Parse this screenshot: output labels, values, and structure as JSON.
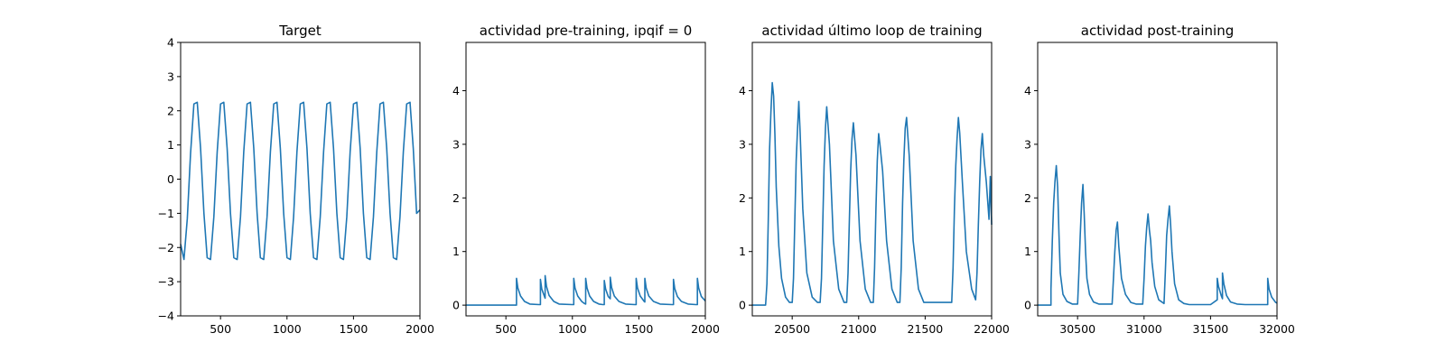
{
  "colors": {
    "series": "#1f77b4",
    "axes": "#000000",
    "background": "#ffffff"
  },
  "chart_data": [
    {
      "type": "line",
      "title": "Target",
      "xlabel": "",
      "ylabel": "",
      "xlim": [
        200,
        2000
      ],
      "ylim": [
        -4,
        4
      ],
      "xticks": [
        500,
        1000,
        1500,
        2000
      ],
      "yticks": [
        -4,
        -3,
        -2,
        -1,
        0,
        1,
        2,
        3,
        4
      ],
      "grid": false,
      "series": [
        {
          "x": [
            200,
            225,
            250,
            275,
            300,
            325,
            350,
            375,
            400,
            425,
            450,
            475,
            500,
            525,
            550,
            575,
            600,
            625,
            650,
            675,
            700,
            725,
            750,
            775,
            800,
            825,
            850,
            875,
            900,
            925,
            950,
            975,
            1000,
            1025,
            1050,
            1075,
            1100,
            1125,
            1150,
            1175,
            1200,
            1225,
            1250,
            1275,
            1300,
            1325,
            1350,
            1375,
            1400,
            1425,
            1450,
            1475,
            1500,
            1525,
            1550,
            1575,
            1600,
            1625,
            1650,
            1675,
            1700,
            1725,
            1750,
            1775,
            1800,
            1825,
            1850,
            1875,
            1900,
            1925,
            1950,
            1975,
            2000
          ],
          "y": [
            -1.9,
            -2.35,
            -1.15,
            0.75,
            2.2,
            2.25,
            0.9,
            -1.0,
            -2.3,
            -2.35,
            -1.1,
            0.8,
            2.2,
            2.25,
            0.9,
            -1.0,
            -2.3,
            -2.35,
            -1.1,
            0.8,
            2.2,
            2.25,
            0.9,
            -1.0,
            -2.3,
            -2.35,
            -1.1,
            0.8,
            2.2,
            2.25,
            0.9,
            -1.0,
            -2.3,
            -2.35,
            -1.1,
            0.8,
            2.2,
            2.25,
            0.9,
            -1.0,
            -2.3,
            -2.35,
            -1.1,
            0.8,
            2.2,
            2.25,
            0.9,
            -1.0,
            -2.3,
            -2.35,
            -1.1,
            0.8,
            2.2,
            2.25,
            0.9,
            -1.0,
            -2.3,
            -2.35,
            -1.1,
            0.8,
            2.2,
            2.25,
            0.9,
            -1.0,
            -2.3,
            -2.35,
            -1.1,
            0.8,
            2.2,
            2.25,
            0.9,
            -1.0,
            -0.9
          ]
        }
      ]
    },
    {
      "type": "line",
      "title": "actividad pre-training, ipqif = 0",
      "xlabel": "",
      "ylabel": "",
      "xlim": [
        200,
        2000
      ],
      "ylim": [
        -0.2,
        4.9
      ],
      "xticks": [
        500,
        1000,
        1500,
        2000
      ],
      "yticks": [
        0,
        1,
        2,
        3,
        4
      ],
      "grid": false,
      "series": [
        {
          "x": [
            200,
            580,
            580,
            590,
            610,
            640,
            680,
            750,
            760,
            760,
            770,
            790,
            795,
            795,
            805,
            825,
            860,
            900,
            1000,
            1010,
            1010,
            1020,
            1040,
            1070,
            1090,
            1100,
            1100,
            1110,
            1130,
            1160,
            1200,
            1230,
            1240,
            1240,
            1250,
            1270,
            1285,
            1285,
            1295,
            1315,
            1350,
            1400,
            1470,
            1480,
            1480,
            1490,
            1510,
            1540,
            1545,
            1545,
            1555,
            1575,
            1610,
            1660,
            1750,
            1760,
            1760,
            1770,
            1790,
            1820,
            1870,
            1930,
            1940,
            1940,
            1950,
            1970,
            2000
          ],
          "y": [
            0,
            0,
            0.5,
            0.32,
            0.17,
            0.07,
            0.02,
            0.01,
            0.01,
            0.48,
            0.3,
            0.16,
            0.13,
            0.55,
            0.35,
            0.18,
            0.07,
            0.02,
            0.01,
            0.01,
            0.5,
            0.32,
            0.17,
            0.07,
            0.03,
            0.02,
            0.5,
            0.32,
            0.17,
            0.07,
            0.02,
            0.01,
            0.01,
            0.46,
            0.3,
            0.16,
            0.12,
            0.52,
            0.33,
            0.17,
            0.07,
            0.02,
            0.01,
            0.01,
            0.5,
            0.32,
            0.17,
            0.07,
            0.06,
            0.5,
            0.32,
            0.17,
            0.07,
            0.02,
            0.01,
            0.01,
            0.48,
            0.31,
            0.16,
            0.07,
            0.02,
            0.01,
            0.01,
            0.5,
            0.32,
            0.16,
            0.08
          ]
        }
      ]
    },
    {
      "type": "line",
      "title": "actividad último loop de training",
      "xlabel": "",
      "ylabel": "",
      "xlim": [
        20200,
        22000
      ],
      "ylim": [
        -0.2,
        4.9
      ],
      "xticks": [
        20500,
        21000,
        21500,
        22000
      ],
      "yticks": [
        0,
        1,
        2,
        3,
        4
      ],
      "grid": false,
      "series": [
        {
          "x": [
            20200,
            20300,
            20310,
            20320,
            20330,
            20340,
            20350,
            20360,
            20370,
            20380,
            20400,
            20420,
            20450,
            20480,
            20500,
            20510,
            20520,
            20530,
            20540,
            20550,
            20560,
            20580,
            20610,
            20650,
            20690,
            20710,
            20720,
            20730,
            20740,
            20750,
            20760,
            20780,
            20810,
            20850,
            20890,
            20910,
            20920,
            20930,
            20940,
            20950,
            20960,
            20980,
            21010,
            21050,
            21090,
            21110,
            21120,
            21130,
            21140,
            21150,
            21160,
            21180,
            21210,
            21250,
            21290,
            21310,
            21320,
            21330,
            21340,
            21350,
            21360,
            21380,
            21410,
            21450,
            21490,
            21700,
            21710,
            21720,
            21730,
            21740,
            21750,
            21760,
            21780,
            21810,
            21850,
            21880,
            21890,
            21900,
            21910,
            21920,
            21930,
            21940,
            21960,
            21980,
            21990,
            22000
          ],
          "y": [
            0,
            0,
            0.4,
            1.6,
            2.9,
            3.6,
            4.15,
            3.9,
            3.2,
            2.2,
            1.1,
            0.5,
            0.15,
            0.05,
            0.05,
            0.5,
            1.6,
            2.7,
            3.3,
            3.8,
            3.2,
            1.8,
            0.6,
            0.15,
            0.05,
            0.05,
            0.5,
            1.5,
            2.6,
            3.3,
            3.7,
            3.0,
            1.2,
            0.3,
            0.05,
            0.05,
            0.6,
            1.6,
            2.5,
            3.1,
            3.4,
            2.8,
            1.2,
            0.3,
            0.05,
            0.05,
            0.7,
            1.8,
            2.7,
            3.2,
            3.0,
            2.5,
            1.2,
            0.3,
            0.05,
            0.05,
            0.7,
            1.9,
            2.7,
            3.3,
            3.5,
            2.8,
            1.2,
            0.3,
            0.05,
            0.05,
            0.7,
            1.8,
            2.6,
            3.1,
            3.5,
            3.2,
            2.3,
            1.0,
            0.3,
            0.1,
            0.6,
            1.5,
            2.3,
            2.9,
            3.2,
            2.8,
            2.3,
            1.6,
            2.4,
            1.5
          ]
        }
      ]
    },
    {
      "type": "line",
      "title": "actividad post-training",
      "xlabel": "",
      "ylabel": "",
      "xlim": [
        30200,
        32000
      ],
      "ylim": [
        -0.2,
        4.9
      ],
      "xticks": [
        30500,
        31000,
        31500,
        32000
      ],
      "yticks": [
        0,
        1,
        2,
        3,
        4
      ],
      "grid": false,
      "series": [
        {
          "x": [
            30200,
            30300,
            30300,
            30310,
            30320,
            30330,
            30340,
            30350,
            30360,
            30370,
            30390,
            30420,
            30460,
            30500,
            30510,
            30520,
            30530,
            30540,
            30550,
            30560,
            30570,
            30590,
            30620,
            30660,
            30700,
            30760,
            30770,
            30780,
            30790,
            30800,
            30810,
            30830,
            30860,
            30900,
            30940,
            30990,
            31000,
            31010,
            31020,
            31030,
            31040,
            31050,
            31060,
            31080,
            31110,
            31150,
            31160,
            31170,
            31180,
            31190,
            31200,
            31210,
            31230,
            31260,
            31300,
            31340,
            31500,
            31550,
            31550,
            31560,
            31580,
            31590,
            31590,
            31600,
            31620,
            31650,
            31700,
            31760,
            31930,
            31930,
            31940,
            31960,
            31990,
            32000
          ],
          "y": [
            0,
            0,
            0.3,
            1.2,
            1.9,
            2.3,
            2.6,
            2.2,
            1.3,
            0.6,
            0.2,
            0.07,
            0.02,
            0.02,
            0.6,
            1.3,
            1.9,
            2.25,
            1.7,
            1.0,
            0.5,
            0.2,
            0.06,
            0.02,
            0.02,
            0.02,
            0.5,
            1.0,
            1.4,
            1.55,
            1.1,
            0.5,
            0.2,
            0.05,
            0.02,
            0.02,
            0.5,
            1.1,
            1.45,
            1.7,
            1.4,
            1.2,
            0.8,
            0.35,
            0.1,
            0.03,
            0.6,
            1.3,
            1.6,
            1.85,
            1.5,
            1.0,
            0.4,
            0.1,
            0.03,
            0.01,
            0.01,
            0.1,
            0.5,
            0.35,
            0.18,
            0.12,
            0.6,
            0.4,
            0.18,
            0.06,
            0.02,
            0.01,
            0.01,
            0.5,
            0.3,
            0.15,
            0.05,
            0.04
          ]
        }
      ]
    }
  ]
}
